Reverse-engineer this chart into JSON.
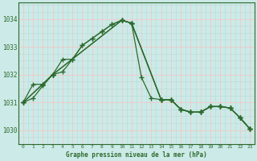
{
  "title": "Graphe pression niveau de la mer (hPa)",
  "background_color": "#cceae7",
  "grid_major_color": "#f0c8c8",
  "grid_minor_color": "#b8dbd8",
  "line_color": "#2d6a2d",
  "xlim": [
    -0.5,
    23.5
  ],
  "ylim": [
    1029.5,
    1034.6
  ],
  "yticks": [
    1030,
    1031,
    1032,
    1033,
    1034
  ],
  "xtick_labels": [
    "0",
    "1",
    "2",
    "3",
    "4",
    "5",
    "6",
    "7",
    "8",
    "9",
    "10",
    "11",
    "12",
    "13",
    "14",
    "15",
    "16",
    "17",
    "18",
    "19",
    "20",
    "21",
    "22",
    "23"
  ],
  "series1_x": [
    0,
    1,
    2,
    3,
    4,
    5,
    6,
    7,
    8,
    9,
    10,
    11,
    12,
    13,
    14,
    15,
    16,
    17,
    18,
    19,
    20,
    21,
    22,
    23
  ],
  "series1_y": [
    1031.0,
    1031.65,
    1031.65,
    1032.0,
    1032.55,
    1032.55,
    1033.05,
    1033.3,
    1033.55,
    1033.8,
    1033.95,
    1033.85,
    1031.9,
    1031.15,
    1031.1,
    1031.1,
    1030.75,
    1030.65,
    1030.65,
    1030.85,
    1030.85,
    1030.8,
    1030.45,
    1030.05
  ],
  "series2_x": [
    0,
    2,
    3,
    4,
    5,
    6,
    7,
    8,
    9,
    10,
    11,
    14,
    15,
    16,
    17,
    18,
    19,
    20,
    21,
    22,
    23
  ],
  "series2_y": [
    1031.0,
    1031.65,
    1032.0,
    1032.1,
    1032.55,
    1033.05,
    1033.3,
    1033.55,
    1033.8,
    1033.95,
    1033.85,
    1031.1,
    1031.1,
    1030.75,
    1030.65,
    1030.65,
    1030.85,
    1030.85,
    1030.8,
    1030.45,
    1030.05
  ],
  "series3_x": [
    0,
    3,
    10,
    11,
    14,
    15,
    16,
    17,
    18,
    19,
    20,
    21,
    22,
    23
  ],
  "series3_y": [
    1031.0,
    1032.0,
    1033.95,
    1033.85,
    1031.1,
    1031.1,
    1030.75,
    1030.65,
    1030.65,
    1030.85,
    1030.85,
    1030.8,
    1030.45,
    1030.05
  ],
  "series4_x": [
    0,
    1,
    2,
    3,
    10,
    11,
    14,
    15,
    16,
    17,
    18,
    19,
    20,
    21,
    22,
    23
  ],
  "series4_y": [
    1031.0,
    1031.15,
    1031.6,
    1032.0,
    1033.95,
    1033.85,
    1031.1,
    1031.1,
    1030.75,
    1030.65,
    1030.65,
    1030.85,
    1030.85,
    1030.8,
    1030.45,
    1030.05
  ]
}
